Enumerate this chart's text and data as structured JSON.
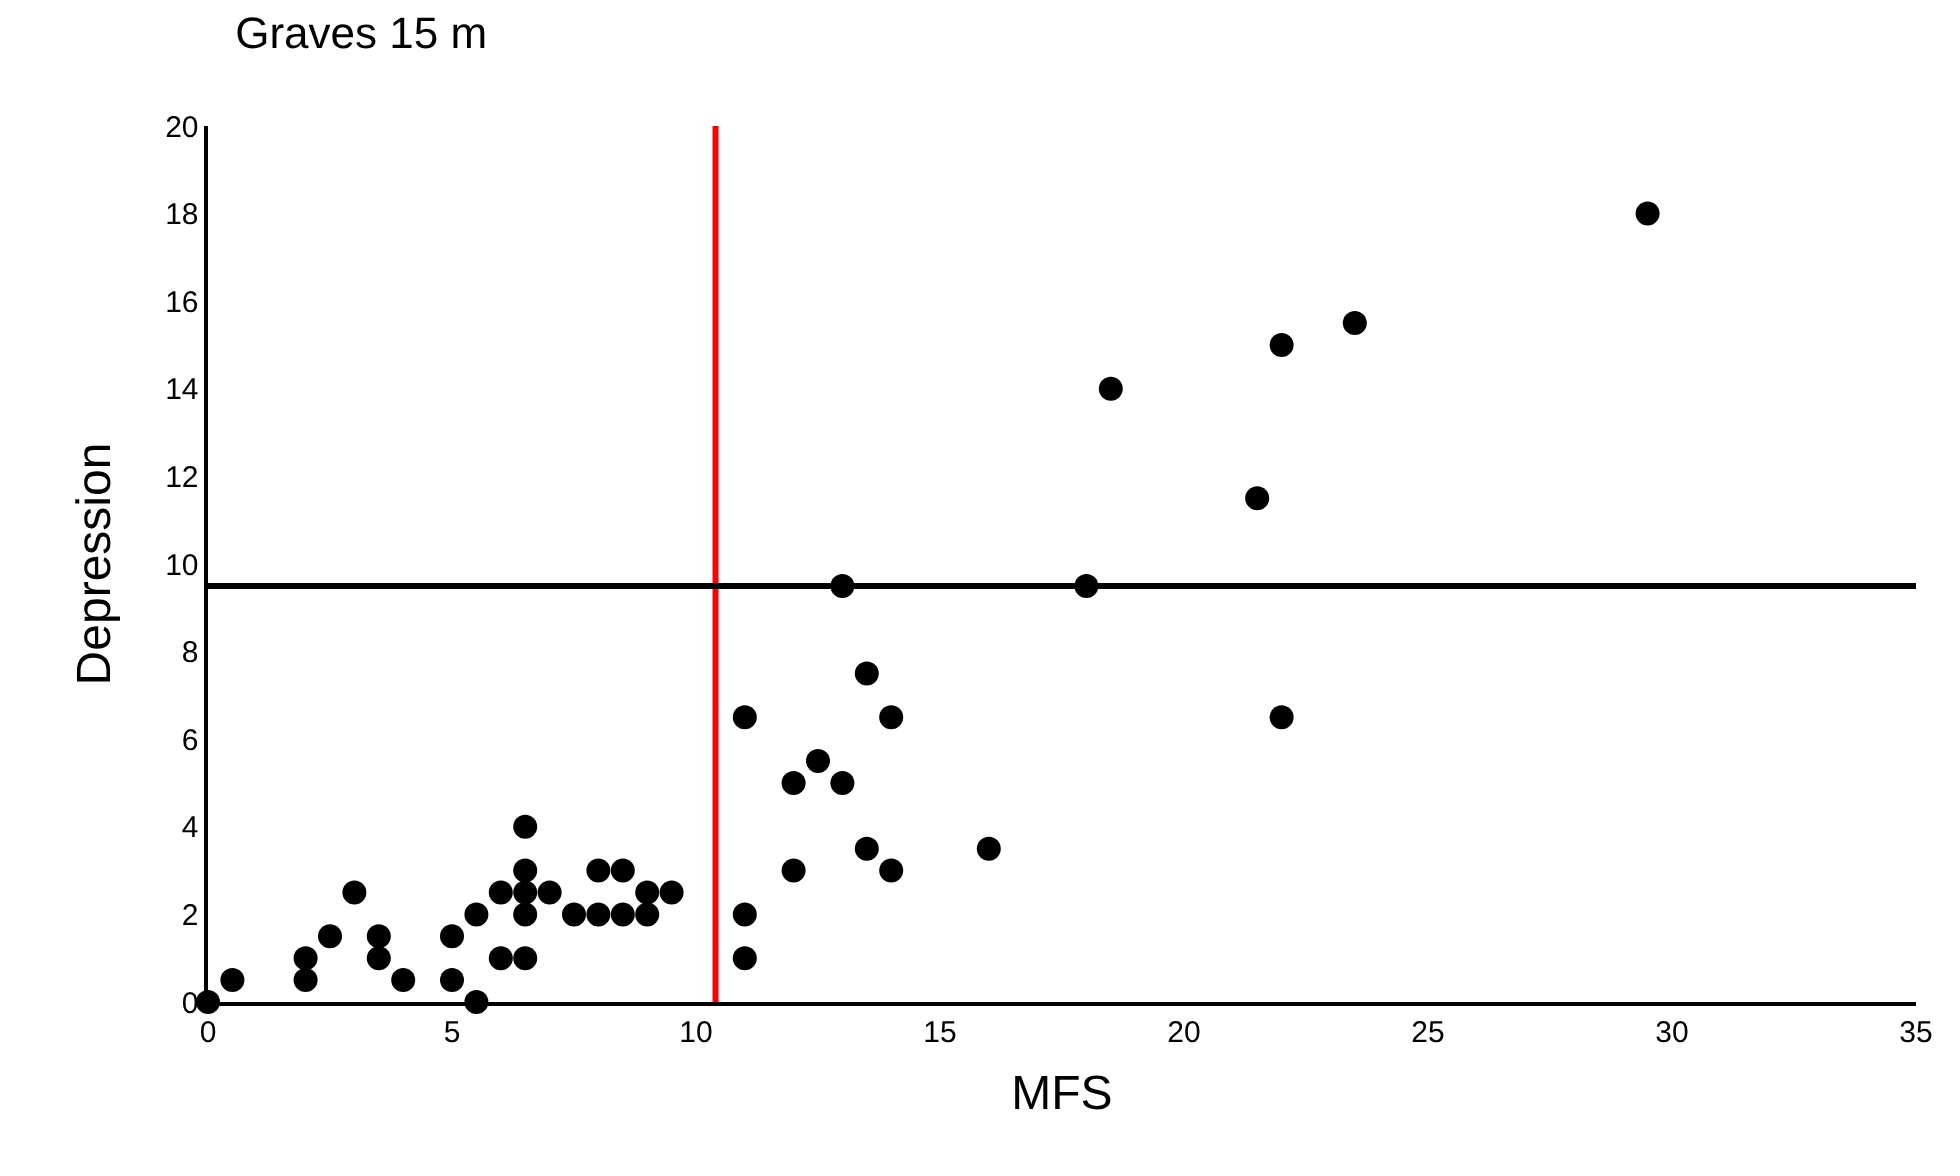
{
  "chart_data": {
    "type": "scatter",
    "title": "Graves 15 m",
    "xlabel": "MFS",
    "ylabel": "Depression",
    "x": [
      0,
      0.5,
      2,
      2,
      2.5,
      3,
      3.5,
      3.5,
      4,
      5,
      5,
      5.5,
      5.5,
      6,
      6,
      6.5,
      6.5,
      6.5,
      6.5,
      6.5,
      7,
      7.5,
      8,
      8,
      8.5,
      8.5,
      9,
      9,
      9.5,
      11,
      11,
      11,
      12,
      12,
      12.5,
      13,
      13,
      13.5,
      13.5,
      14,
      14,
      16,
      18,
      18.5,
      21.5,
      22,
      22,
      23.5,
      29.5
    ],
    "series": [
      {
        "color": "#000000",
        "values": [
          0,
          0.5,
          0.5,
          1,
          1.5,
          2.5,
          1,
          1.5,
          0.5,
          0.5,
          1.5,
          0,
          2,
          1,
          2.5,
          1,
          2,
          2.5,
          3,
          4,
          2.5,
          2,
          2,
          3,
          2,
          3,
          2,
          2.5,
          2.5,
          1,
          2,
          6.5,
          3,
          5,
          5.5,
          5,
          9.5,
          3.5,
          7.5,
          3,
          6.5,
          3.5,
          9.5,
          14,
          11.5,
          6.5,
          15,
          15.5,
          18
        ]
      }
    ],
    "xlim": [
      0,
      35
    ],
    "xticks": [
      0,
      5,
      10,
      15,
      20,
      25,
      30,
      35
    ],
    "ylim": [
      0,
      20
    ],
    "yticks": [
      0,
      2,
      4,
      6,
      8,
      10,
      12,
      14,
      16,
      18,
      20
    ],
    "grid": false,
    "legend": false,
    "marker": "circle",
    "ref_lines": [
      {
        "axis": "x",
        "value": 10.4,
        "color": "#ff0000"
      },
      {
        "axis": "y",
        "value": 9.5,
        "color": "#000000"
      }
    ]
  }
}
